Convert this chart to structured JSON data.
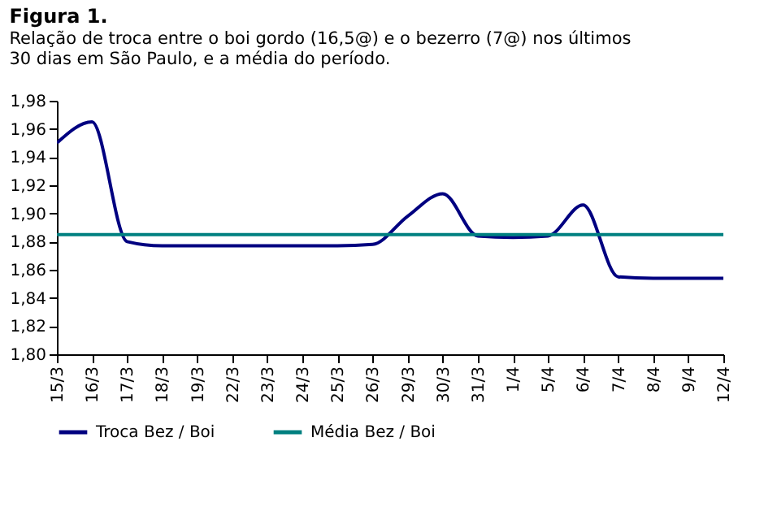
{
  "chart_data": {
    "type": "line",
    "title": "Figura 1.",
    "subtitle": "Relação de troca entre o boi gordo (16,5@) e o bezerro (7@) nos últimos\n30 dias em São Paulo, e a média do período.",
    "categories": [
      "15/3",
      "16/3",
      "17/3",
      "18/3",
      "19/3",
      "22/3",
      "23/3",
      "24/3",
      "25/3",
      "26/3",
      "29/3",
      "30/3",
      "31/3",
      "1/4",
      "5/4",
      "6/4",
      "7/4",
      "8/4",
      "9/4",
      "12/4"
    ],
    "series": [
      {
        "name": "Troca Bez / Boi",
        "color": "#000080",
        "values": [
          1.95,
          1.965,
          1.88,
          1.877,
          1.877,
          1.877,
          1.877,
          1.877,
          1.877,
          1.878,
          1.898,
          1.914,
          1.884,
          1.883,
          1.884,
          1.906,
          1.855,
          1.854,
          1.854,
          1.854
        ]
      },
      {
        "name": "Média Bez / Boi",
        "color": "#008080",
        "values": [
          1.885,
          1.885,
          1.885,
          1.885,
          1.885,
          1.885,
          1.885,
          1.885,
          1.885,
          1.885,
          1.885,
          1.885,
          1.885,
          1.885,
          1.885,
          1.885,
          1.885,
          1.885,
          1.885,
          1.885
        ]
      }
    ],
    "ylim": [
      1.8,
      1.98
    ],
    "yticks": [
      {
        "value": 1.8,
        "label": "1,80"
      },
      {
        "value": 1.82,
        "label": "1,82"
      },
      {
        "value": 1.84,
        "label": "1,84"
      },
      {
        "value": 1.86,
        "label": "1,86"
      },
      {
        "value": 1.88,
        "label": "1,88"
      },
      {
        "value": 1.9,
        "label": "1,90"
      },
      {
        "value": 1.92,
        "label": "1,92"
      },
      {
        "value": 1.94,
        "label": "1,94"
      },
      {
        "value": 1.96,
        "label": "1,96"
      },
      {
        "value": 1.98,
        "label": "1,98"
      }
    ],
    "grid": false,
    "legend": "bottom",
    "marker": "none",
    "line_style": "solid"
  }
}
